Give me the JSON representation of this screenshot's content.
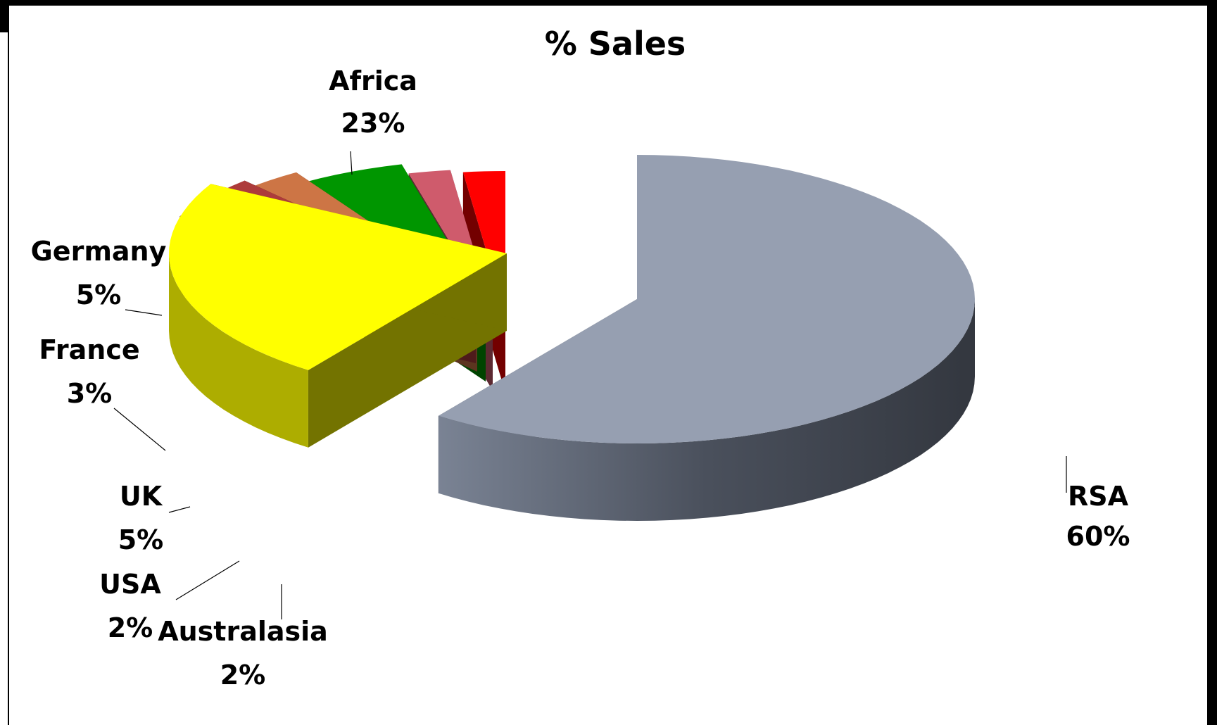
{
  "chart_data": {
    "type": "pie",
    "title": "% Sales",
    "categories": [
      "RSA",
      "Africa",
      "Germany",
      "France",
      "UK",
      "USA",
      "Australasia"
    ],
    "values": [
      60,
      23,
      5,
      3,
      5,
      2,
      2
    ],
    "labels": [
      {
        "name": "RSA",
        "pct": "60%"
      },
      {
        "name": "Africa",
        "pct": "23%"
      },
      {
        "name": "Germany",
        "pct": "5%"
      },
      {
        "name": "France",
        "pct": "3%"
      },
      {
        "name": "UK",
        "pct": "5%"
      },
      {
        "name": "USA",
        "pct": "2%"
      },
      {
        "name": "Australasia",
        "pct": "2%"
      }
    ],
    "colors": {
      "RSA": "#969fb1",
      "Africa": "#ffff00",
      "Germany": "#ad3b3b",
      "France": "#cd7545",
      "UK": "#009600",
      "USA": "#cf5b6c",
      "Australasia": "#ff0000"
    },
    "style": "3d-exploded",
    "legend": "none"
  }
}
